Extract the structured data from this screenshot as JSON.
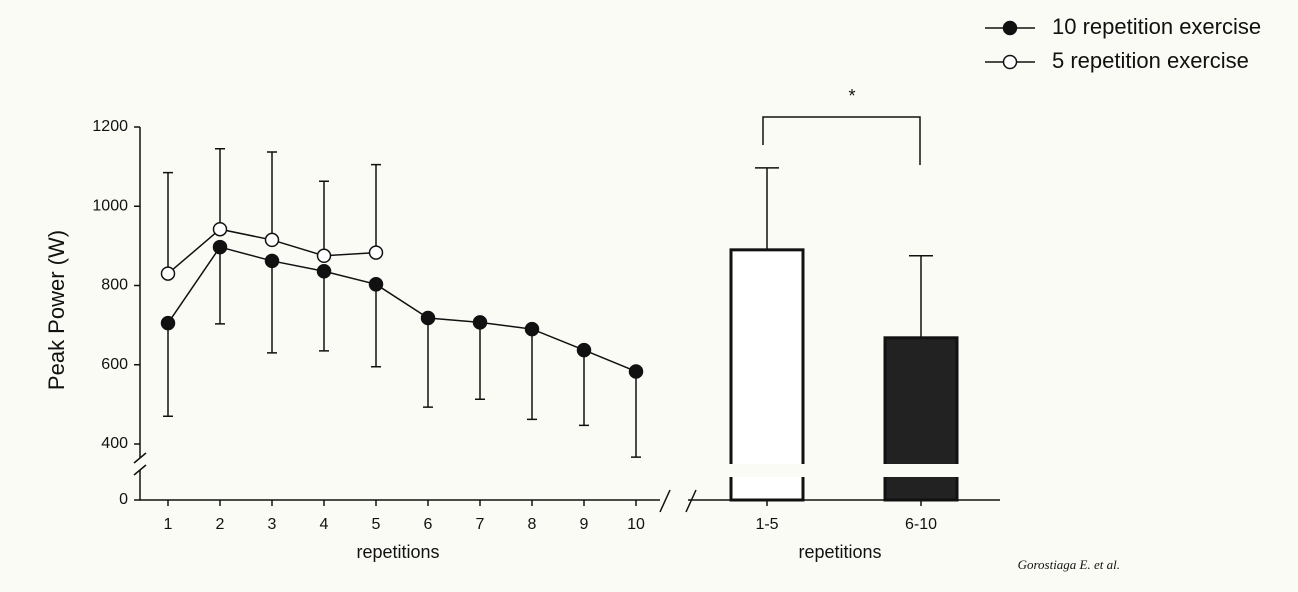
{
  "chart_data": [
    {
      "type": "line",
      "y_label": "Peak Power (W)",
      "x_label": "repetitions",
      "categories": [
        "1",
        "2",
        "3",
        "4",
        "5",
        "6",
        "7",
        "8",
        "9",
        "10"
      ],
      "series": [
        {
          "name": "10 repetition exercise",
          "color": "#111111",
          "marker": "filled",
          "error_direction": "down",
          "values": [
            705,
            897,
            862,
            836,
            803,
            718,
            707,
            690,
            637,
            583
          ],
          "errors": [
            235,
            194,
            232,
            201,
            208,
            225,
            194,
            228,
            190,
            216
          ]
        },
        {
          "name": "5 repetition exercise",
          "color": "#111111",
          "marker": "open",
          "error_direction": "up",
          "values": [
            830,
            942,
            915,
            875,
            883,
            null,
            null,
            null,
            null,
            null
          ],
          "errors": [
            255,
            203,
            222,
            188,
            222,
            null,
            null,
            null,
            null,
            null
          ]
        }
      ],
      "ylim": [
        0,
        1200
      ],
      "yticks": [
        0,
        400,
        600,
        800,
        1000,
        1200
      ],
      "legend": "top-right"
    },
    {
      "type": "bar",
      "x_label": "repetitions",
      "categories": [
        "1-5",
        "6-10"
      ],
      "values": [
        890,
        668
      ],
      "errors": [
        207,
        207
      ],
      "colors": [
        "#ffffff",
        "#222222"
      ],
      "ylim": [
        0,
        1200
      ],
      "annotation": "*"
    }
  ],
  "source": "Gorostiaga E. et al."
}
